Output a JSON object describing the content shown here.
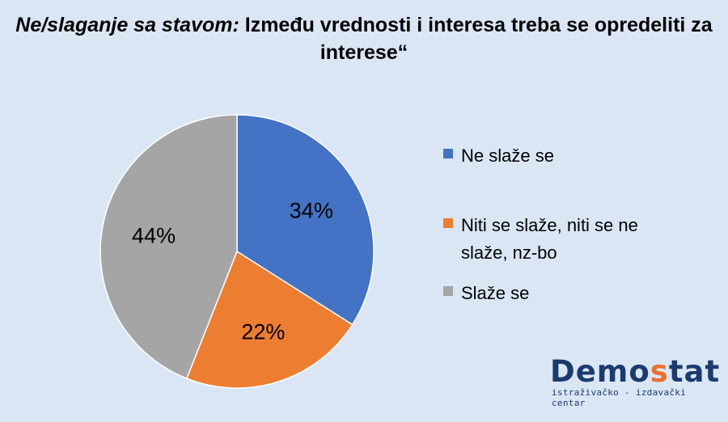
{
  "chart_data": {
    "type": "pie",
    "title_italic": "Ne/slaganje sa stavom:",
    "title_rest": " Između vrednosti i interesa treba se opredeliti za interese“",
    "slices": [
      {
        "label": "Ne slaže se",
        "value": 34,
        "display": "34%",
        "color": "#4472c4"
      },
      {
        "label": "Niti se slaže, niti se ne slaže, nz-bo",
        "value": 22,
        "display": "22%",
        "color": "#ed7d31"
      },
      {
        "label": "Slaže se",
        "value": 44,
        "display": "44%",
        "color": "#a5a5a5"
      }
    ],
    "legend_position": "right"
  },
  "logo": {
    "word_start": "Demo",
    "word_accent": "s",
    "word_end": "tat",
    "tagline": "istraživačko - izdavački  centar",
    "accent_color": "#e8702a",
    "brand_color": "#1b3b6f"
  }
}
